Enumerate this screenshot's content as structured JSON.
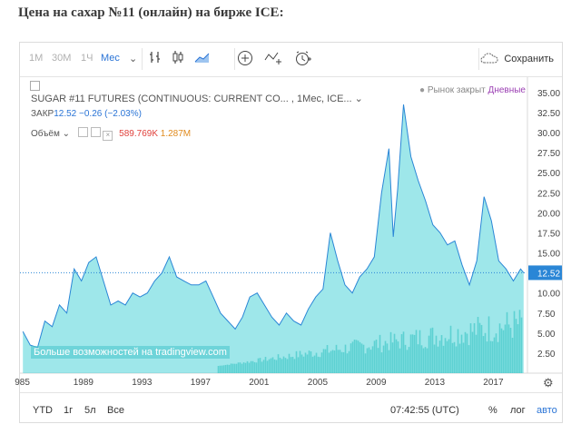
{
  "heading": "Цена на сахар №11 (онлайн) на бирже ICE:",
  "toolbar": {
    "intervals": [
      "1М",
      "30М",
      "1Ч",
      "Мес"
    ],
    "save_label": "Сохранить"
  },
  "legend": {
    "symbol": "SUGAR #11 FUTURES (CONTINUOUS: CURRENT CO... , 1Мес, ICE...",
    "close_label": "ЗАКР",
    "close_value": "12.52",
    "change": "−0.26 (−2.03%)",
    "volume_label": "Объём",
    "volume_value1": "589.769K",
    "volume_value2": "1.287M"
  },
  "market_status": "Рынок закрыт",
  "period": "Дневные",
  "watermark": "Больше возможностей на tradingview.com",
  "bottombar": {
    "ranges": [
      "YTD",
      "1г",
      "5л",
      "Все"
    ],
    "time": "07:42:55 (UTC)",
    "pct": "%",
    "log": "лог",
    "auto": "авто"
  },
  "chart_data": {
    "type": "area",
    "x_ticks": [
      "985",
      "1989",
      "1993",
      "1997",
      "2001",
      "2005",
      "2009",
      "2013",
      "2017"
    ],
    "y_ticks": [
      "35.00",
      "32.50",
      "30.00",
      "27.50",
      "25.00",
      "22.50",
      "20.00",
      "17.50",
      "15.00",
      "12.50",
      "10.00",
      "7.50",
      "5.00",
      "2.50"
    ],
    "ylim": [
      0,
      36
    ],
    "last_value": "12.52",
    "colors": {
      "area": "#4fd3d9",
      "line": "#2a86d6",
      "volume": "#3fbdb8"
    },
    "series": [
      {
        "name": "Price",
        "values": [
          [
            1985.0,
            5.2
          ],
          [
            1985.5,
            3.5
          ],
          [
            1986.0,
            3.2
          ],
          [
            1986.5,
            6.5
          ],
          [
            1987.0,
            5.8
          ],
          [
            1987.5,
            8.5
          ],
          [
            1988.0,
            7.5
          ],
          [
            1988.5,
            13.0
          ],
          [
            1989.0,
            11.5
          ],
          [
            1989.5,
            13.8
          ],
          [
            1990.0,
            14.5
          ],
          [
            1990.5,
            11.5
          ],
          [
            1991.0,
            8.5
          ],
          [
            1991.5,
            9.0
          ],
          [
            1992.0,
            8.5
          ],
          [
            1992.5,
            10.0
          ],
          [
            1993.0,
            9.5
          ],
          [
            1993.5,
            10.0
          ],
          [
            1994.0,
            11.5
          ],
          [
            1994.5,
            12.5
          ],
          [
            1995.0,
            14.5
          ],
          [
            1995.5,
            12.0
          ],
          [
            1996.0,
            11.5
          ],
          [
            1996.5,
            11.0
          ],
          [
            1997.0,
            11.0
          ],
          [
            1997.5,
            11.5
          ],
          [
            1998.0,
            9.5
          ],
          [
            1998.5,
            7.5
          ],
          [
            1999.0,
            6.5
          ],
          [
            1999.5,
            5.5
          ],
          [
            2000.0,
            7.0
          ],
          [
            2000.5,
            9.5
          ],
          [
            2001.0,
            10.0
          ],
          [
            2001.5,
            8.5
          ],
          [
            2002.0,
            7.0
          ],
          [
            2002.5,
            6.0
          ],
          [
            2003.0,
            7.5
          ],
          [
            2003.5,
            6.5
          ],
          [
            2004.0,
            6.0
          ],
          [
            2004.5,
            8.0
          ],
          [
            2005.0,
            9.5
          ],
          [
            2005.5,
            10.5
          ],
          [
            2006.0,
            17.5
          ],
          [
            2006.5,
            14.0
          ],
          [
            2007.0,
            11.0
          ],
          [
            2007.5,
            10.0
          ],
          [
            2008.0,
            12.0
          ],
          [
            2008.5,
            13.0
          ],
          [
            2009.0,
            14.5
          ],
          [
            2009.5,
            22.5
          ],
          [
            2010.0,
            28.0
          ],
          [
            2010.3,
            17.0
          ],
          [
            2010.6,
            23.0
          ],
          [
            2011.0,
            33.5
          ],
          [
            2011.5,
            27.0
          ],
          [
            2012.0,
            24.0
          ],
          [
            2012.5,
            21.5
          ],
          [
            2013.0,
            18.5
          ],
          [
            2013.5,
            17.5
          ],
          [
            2014.0,
            16.0
          ],
          [
            2014.5,
            16.5
          ],
          [
            2015.0,
            13.5
          ],
          [
            2015.5,
            11.0
          ],
          [
            2016.0,
            14.0
          ],
          [
            2016.5,
            22.0
          ],
          [
            2017.0,
            19.0
          ],
          [
            2017.5,
            14.0
          ],
          [
            2018.0,
            13.0
          ],
          [
            2018.5,
            11.5
          ],
          [
            2019.0,
            13.0
          ],
          [
            2019.2,
            12.52
          ]
        ]
      }
    ]
  }
}
